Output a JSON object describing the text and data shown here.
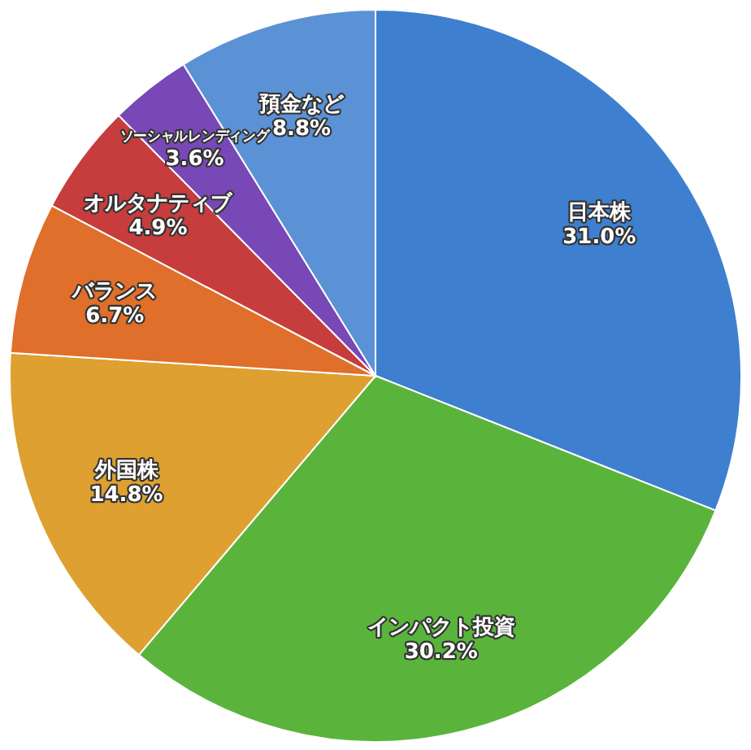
{
  "chart_data": {
    "type": "pie",
    "categories": [
      "日本株",
      "インパクト投資",
      "外国株",
      "バランス",
      "オルタナティブ",
      "ソーシャルレンディング",
      "預金など"
    ],
    "values": [
      31.0,
      30.2,
      14.8,
      6.7,
      4.9,
      3.6,
      8.8
    ],
    "colors": [
      "#3f7fcf",
      "#5ab43c",
      "#dea030",
      "#df6f2a",
      "#c73c3c",
      "#7848b6",
      "#5b92d6"
    ],
    "value_labels": [
      "31.0%",
      "30.2%",
      "14.8%",
      "6.7%",
      "4.9%",
      "3.6%",
      "8.8%"
    ]
  }
}
